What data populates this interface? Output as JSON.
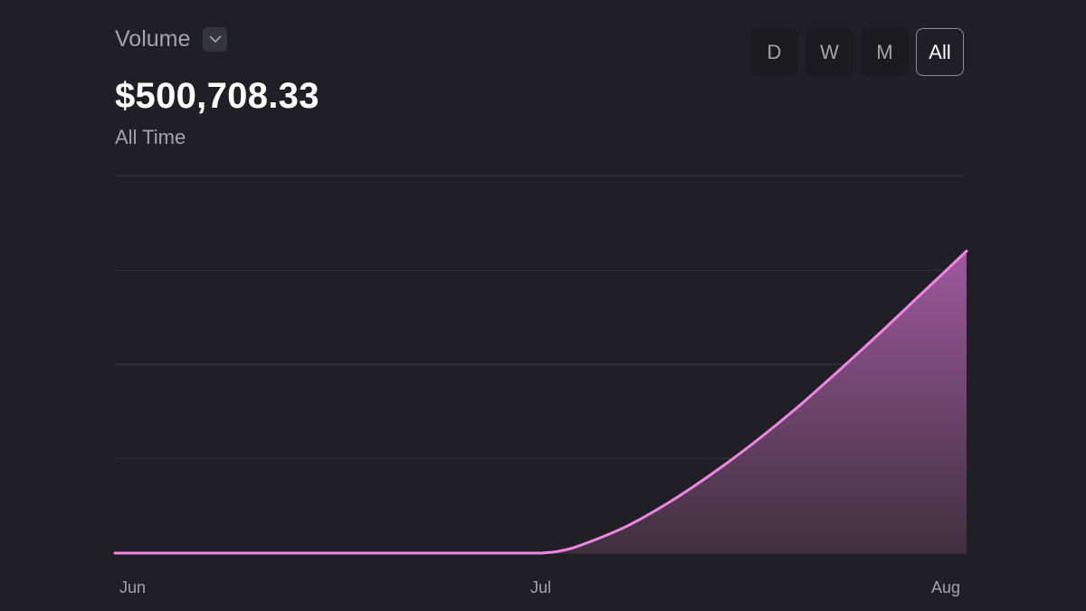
{
  "header": {
    "metric_label": "Volume",
    "metric_dropdown_icon": "chevron-down-icon",
    "total_value": "$500,708.33",
    "range_caption": "All Time"
  },
  "range_tabs": [
    {
      "label": "D",
      "active": false
    },
    {
      "label": "W",
      "active": false
    },
    {
      "label": "M",
      "active": false
    },
    {
      "label": "All",
      "active": true
    }
  ],
  "colors": {
    "background": "#1f1f25",
    "line": "#ef86e3",
    "area_top": "#a45ca3",
    "area_bottom": "#41313f",
    "gridline": "#34343a"
  },
  "chart_data": {
    "type": "area",
    "title": "",
    "xlabel": "",
    "ylabel": "",
    "x_ticks": [
      "Jun",
      "Jul",
      "Aug"
    ],
    "xlim": [
      "Jun",
      "Aug"
    ],
    "ylim": [
      0,
      600000
    ],
    "y_gridlines": 5,
    "grid": "horizontal",
    "series": [
      {
        "x": [
          0,
          0.25,
          0.5,
          0.75,
          0.9,
          1.0,
          1.05,
          1.1,
          1.2,
          1.3,
          1.4,
          1.5,
          1.6,
          1.7,
          1.8,
          1.9,
          2.0
        ],
        "values": [
          0,
          0,
          0,
          0,
          0,
          0,
          4000,
          14000,
          42000,
          80000,
          125000,
          175000,
          230000,
          290000,
          352000,
          416000,
          480000
        ]
      }
    ]
  }
}
